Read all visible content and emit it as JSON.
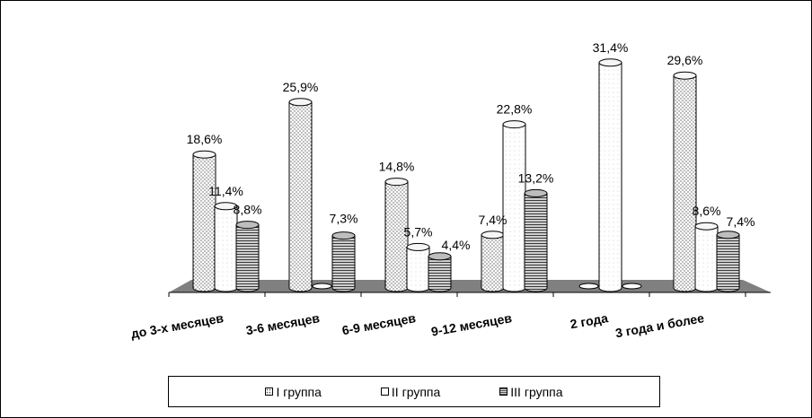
{
  "chart_data": {
    "type": "bar",
    "categories": [
      "до 3-х месяцев",
      "3-6 месяцев",
      "6-9 месяцев",
      "9-12 месяцев",
      "2 года",
      "3 года и более"
    ],
    "series": [
      {
        "name": "I группа",
        "values": [
          18.6,
          25.9,
          14.8,
          7.4,
          0,
          29.6
        ],
        "labels": [
          "18,6%",
          "25,9%",
          "14,8%",
          "7,4%",
          "",
          "29,6%"
        ]
      },
      {
        "name": "II группа",
        "values": [
          11.4,
          0,
          5.7,
          22.8,
          31.4,
          8.6
        ],
        "labels": [
          "11,4%",
          "",
          "5,7%",
          "22,8%",
          "31,4%",
          "8,6%"
        ]
      },
      {
        "name": "III группа",
        "values": [
          8.8,
          7.3,
          4.4,
          13.2,
          0,
          7.4
        ],
        "labels": [
          "8,8%",
          "7,3%",
          "4,4%",
          "13,2%",
          "",
          "7,4%"
        ]
      }
    ],
    "ylim": [
      0,
      35
    ],
    "grid": false,
    "legend_position": "bottom",
    "three_d": true
  },
  "colors": {
    "series_fill": [
      "#f4f4f4",
      "#ffffff",
      "#9a9a9a"
    ],
    "floor": "#808080"
  }
}
